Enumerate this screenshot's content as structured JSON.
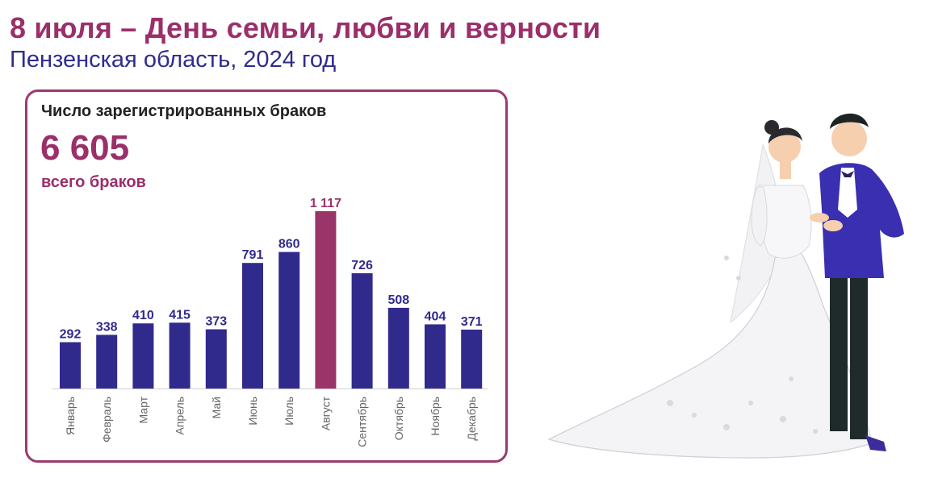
{
  "header": {
    "title": "8 июля – День семьи, любви и верности",
    "subtitle": "Пензенская область, 2024 год"
  },
  "card": {
    "title": "Число зарегистрированных браков",
    "total": "6 605",
    "total_label": "всего браков"
  },
  "colors": {
    "accent": "#9b2f6a",
    "bar": "#312a8d",
    "highlight_bar": "#9b3469",
    "subtitle": "#2f2c8f"
  },
  "chart_data": {
    "type": "bar",
    "categories": [
      "Январь",
      "Февраль",
      "Март",
      "Апрель",
      "Май",
      "Июнь",
      "Июль",
      "Август",
      "Сентябрь",
      "Октябрь",
      "Ноябрь",
      "Декабрь"
    ],
    "values": [
      292,
      338,
      410,
      415,
      373,
      791,
      860,
      1117,
      726,
      508,
      404,
      371
    ],
    "value_labels": [
      "292",
      "338",
      "410",
      "415",
      "373",
      "791",
      "860",
      "1 117",
      "726",
      "508",
      "404",
      "371"
    ],
    "highlight_index": 7,
    "ylim": [
      0,
      1117
    ],
    "grid": false,
    "legend": "none"
  },
  "illustration": {
    "description_icon": "bride-and-groom-illustration"
  }
}
